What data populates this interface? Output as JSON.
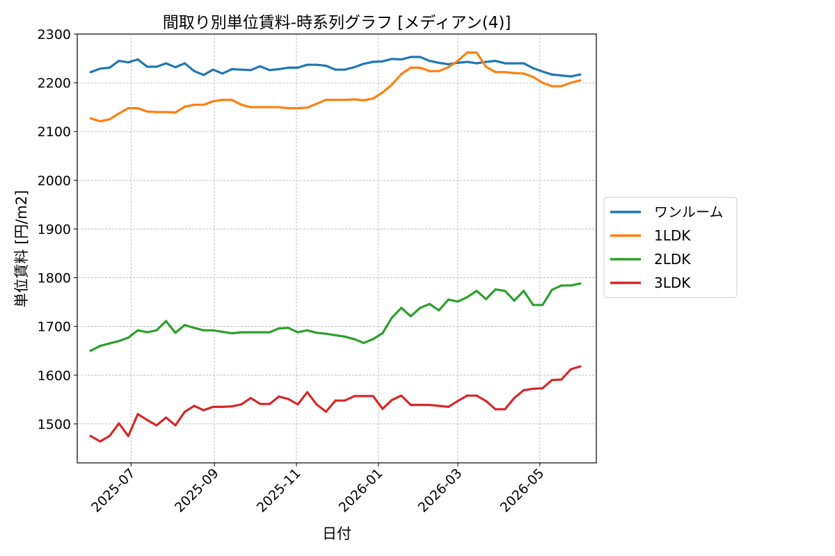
{
  "chart_data": {
    "type": "line",
    "title": "間取り別単位賃料-時系列グラフ [メディアン(4)]",
    "xlabel": "日付",
    "ylabel": "単位賃料 [円/m2]",
    "xlim": [
      "2025-05-22",
      "2026-06-12"
    ],
    "ylim": [
      1420,
      2300
    ],
    "yticks": [
      1500,
      1600,
      1700,
      1800,
      1900,
      2000,
      2100,
      2200,
      2300
    ],
    "xticks": [
      "2025-07",
      "2025-09",
      "2025-11",
      "2026-01",
      "2026-03",
      "2026-05"
    ],
    "grid": true,
    "legend_position": "right, outside plot",
    "x": [
      "2025-06-01",
      "2025-06-08",
      "2025-06-15",
      "2025-06-22",
      "2025-06-29",
      "2025-07-06",
      "2025-07-13",
      "2025-07-20",
      "2025-07-27",
      "2025-08-03",
      "2025-08-10",
      "2025-08-17",
      "2025-08-24",
      "2025-08-31",
      "2025-09-07",
      "2025-09-14",
      "2025-09-21",
      "2025-09-28",
      "2025-10-05",
      "2025-10-12",
      "2025-10-19",
      "2025-10-26",
      "2025-11-02",
      "2025-11-09",
      "2025-11-16",
      "2025-11-23",
      "2025-11-30",
      "2025-12-07",
      "2025-12-14",
      "2025-12-21",
      "2025-12-28",
      "2026-01-04",
      "2026-01-11",
      "2026-01-18",
      "2026-01-25",
      "2026-02-01",
      "2026-02-08",
      "2026-02-15",
      "2026-02-22",
      "2026-03-01",
      "2026-03-08",
      "2026-03-15",
      "2026-03-22",
      "2026-03-29",
      "2026-04-05",
      "2026-04-12",
      "2026-04-19",
      "2026-04-26",
      "2026-05-03",
      "2026-05-10",
      "2026-05-17",
      "2026-05-24",
      "2026-05-31"
    ],
    "series": [
      {
        "name": "ワンルーム",
        "color": "#1f77b4",
        "values": [
          2222,
          2229,
          2231,
          2245,
          2242,
          2248,
          2233,
          2233,
          2240,
          2232,
          2240,
          2224,
          2216,
          2227,
          2219,
          2228,
          2227,
          2226,
          2234,
          2226,
          2228,
          2231,
          2231,
          2237,
          2237,
          2235,
          2227,
          2227,
          2232,
          2239,
          2243,
          2244,
          2249,
          2248,
          2253,
          2253,
          2245,
          2241,
          2238,
          2241,
          2243,
          2240,
          2243,
          2245,
          2240,
          2240,
          2240,
          2230,
          2223,
          2217,
          2215,
          2213,
          2217
        ]
      },
      {
        "name": "1LDK",
        "color": "#ff7f0e",
        "values": [
          2127,
          2121,
          2125,
          2137,
          2148,
          2148,
          2141,
          2140,
          2140,
          2139,
          2151,
          2155,
          2155,
          2162,
          2165,
          2165,
          2155,
          2150,
          2150,
          2150,
          2150,
          2148,
          2148,
          2149,
          2157,
          2165,
          2165,
          2165,
          2166,
          2164,
          2168,
          2180,
          2196,
          2218,
          2231,
          2231,
          2224,
          2224,
          2232,
          2245,
          2262,
          2262,
          2233,
          2222,
          2222,
          2220,
          2219,
          2212,
          2200,
          2193,
          2193,
          2200,
          2205
        ]
      },
      {
        "name": "2LDK",
        "color": "#2ca02c",
        "values": [
          1650,
          1660,
          1665,
          1670,
          1677,
          1692,
          1688,
          1692,
          1711,
          1687,
          1703,
          1697,
          1692,
          1692,
          1689,
          1686,
          1688,
          1688,
          1688,
          1688,
          1696,
          1697,
          1688,
          1692,
          1687,
          1685,
          1682,
          1679,
          1674,
          1666,
          1674,
          1686,
          1718,
          1738,
          1721,
          1738,
          1746,
          1733,
          1755,
          1751,
          1760,
          1773,
          1756,
          1776,
          1773,
          1753,
          1773,
          1744,
          1744,
          1775,
          1784,
          1784,
          1788
        ]
      },
      {
        "name": "3LDK",
        "color": "#d62728",
        "values": [
          1475,
          1464,
          1475,
          1501,
          1475,
          1520,
          1508,
          1497,
          1513,
          1497,
          1525,
          1537,
          1528,
          1535,
          1535,
          1536,
          1540,
          1553,
          1541,
          1541,
          1556,
          1551,
          1540,
          1565,
          1540,
          1525,
          1548,
          1548,
          1557,
          1557,
          1557,
          1531,
          1549,
          1558,
          1539,
          1539,
          1539,
          1537,
          1535,
          1547,
          1558,
          1558,
          1547,
          1530,
          1530,
          1553,
          1569,
          1572,
          1573,
          1590,
          1591,
          1612,
          1618
        ]
      }
    ]
  }
}
